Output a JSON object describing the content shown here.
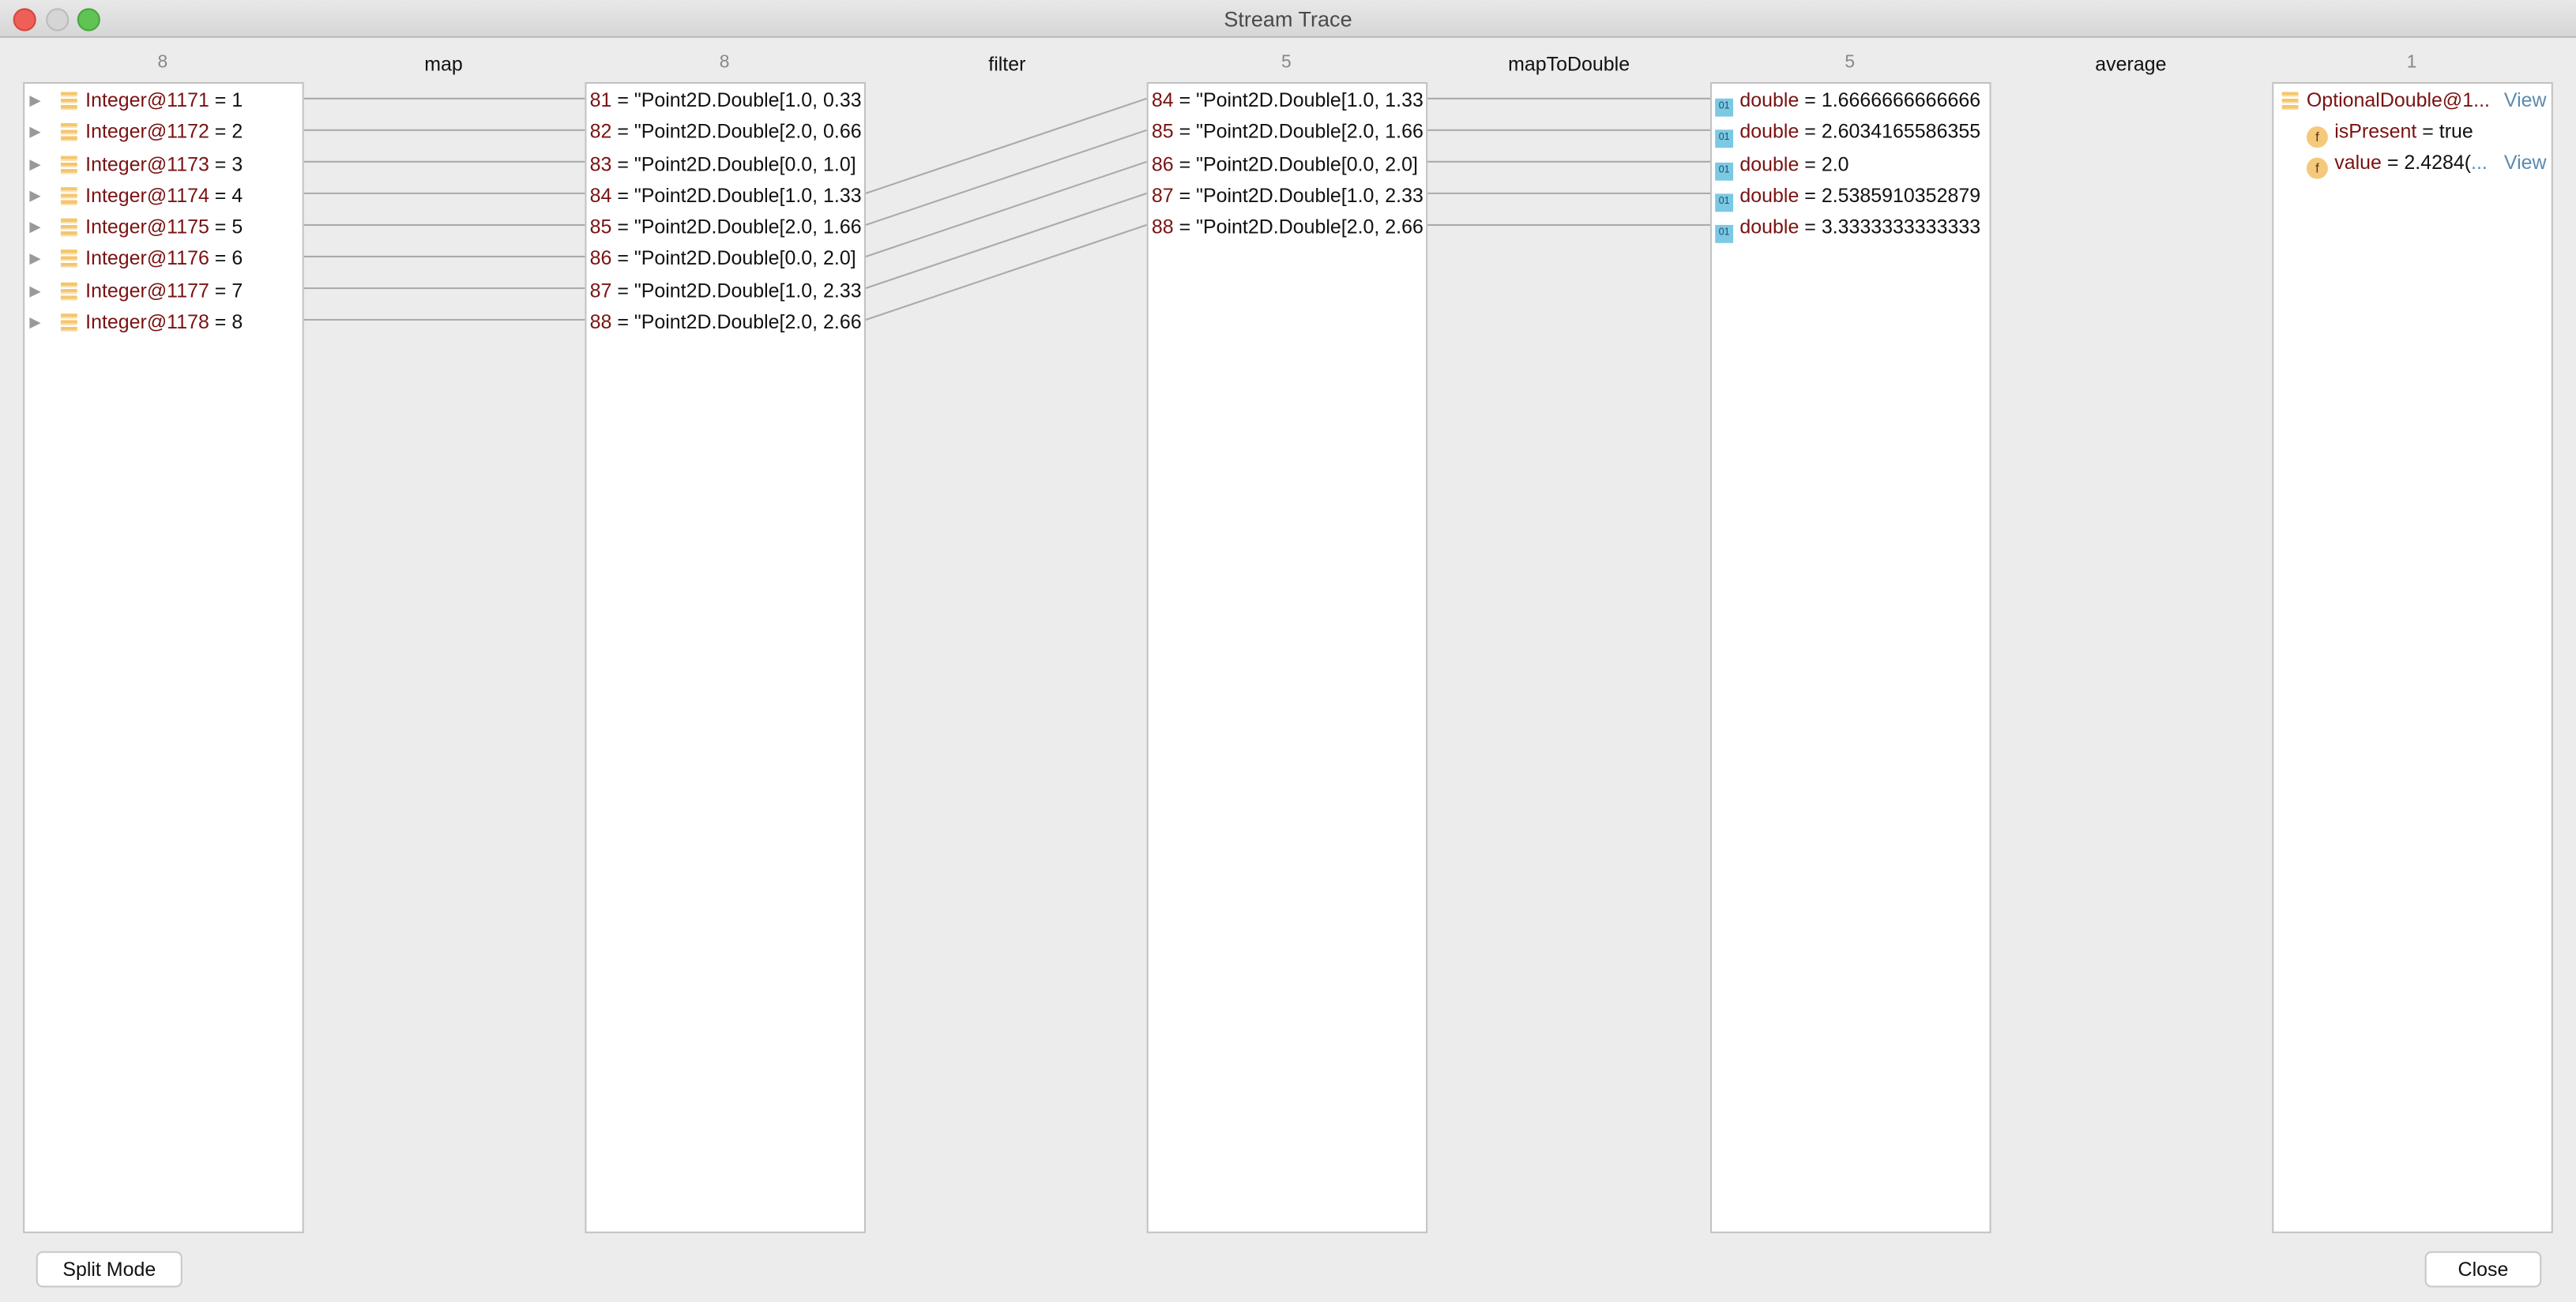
{
  "window": {
    "title": "Stream Trace"
  },
  "stages": [
    {
      "count": "8",
      "items": [
        {
          "key": "Integer@1171",
          "value": "1"
        },
        {
          "key": "Integer@1172",
          "value": "2"
        },
        {
          "key": "Integer@1173",
          "value": "3"
        },
        {
          "key": "Integer@1174",
          "value": "4"
        },
        {
          "key": "Integer@1175",
          "value": "5"
        },
        {
          "key": "Integer@1176",
          "value": "6"
        },
        {
          "key": "Integer@1177",
          "value": "7"
        },
        {
          "key": "Integer@1178",
          "value": "8"
        }
      ]
    },
    {
      "count": "8",
      "items": [
        {
          "key": "81",
          "value": "\"Point2D.Double[1.0, 0.33"
        },
        {
          "key": "82",
          "value": "\"Point2D.Double[2.0, 0.66"
        },
        {
          "key": "83",
          "value": "\"Point2D.Double[0.0, 1.0]"
        },
        {
          "key": "84",
          "value": "\"Point2D.Double[1.0, 1.33"
        },
        {
          "key": "85",
          "value": "\"Point2D.Double[2.0, 1.66"
        },
        {
          "key": "86",
          "value": "\"Point2D.Double[0.0, 2.0]"
        },
        {
          "key": "87",
          "value": "\"Point2D.Double[1.0, 2.33"
        },
        {
          "key": "88",
          "value": "\"Point2D.Double[2.0, 2.66"
        }
      ]
    },
    {
      "count": "5",
      "items": [
        {
          "key": "84",
          "value": "\"Point2D.Double[1.0, 1.33"
        },
        {
          "key": "85",
          "value": "\"Point2D.Double[2.0, 1.66"
        },
        {
          "key": "86",
          "value": "\"Point2D.Double[0.0, 2.0]"
        },
        {
          "key": "87",
          "value": "\"Point2D.Double[1.0, 2.33"
        },
        {
          "key": "88",
          "value": "\"Point2D.Double[2.0, 2.66"
        }
      ]
    },
    {
      "count": "5",
      "items": [
        {
          "key": "double",
          "value": "1.6666666666666"
        },
        {
          "key": "double",
          "value": "2.6034165586355"
        },
        {
          "key": "double",
          "value": "2.0"
        },
        {
          "key": "double",
          "value": "2.5385910352879"
        },
        {
          "key": "double",
          "value": "3.3333333333333"
        }
      ]
    },
    {
      "count": "1",
      "result": {
        "key": "OptionalDouble@1...",
        "view": "View",
        "fields": [
          {
            "key": "isPresent",
            "value": "true"
          },
          {
            "key": "value",
            "value": "2.4284(",
            "more": "...",
            "view": "View"
          }
        ]
      }
    }
  ],
  "operations": [
    "map",
    "filter",
    "mapToDouble",
    "average"
  ],
  "links": [
    [
      [
        0,
        0
      ],
      [
        1,
        1
      ],
      [
        2,
        2
      ],
      [
        3,
        3
      ],
      [
        4,
        4
      ],
      [
        5,
        5
      ],
      [
        6,
        6
      ],
      [
        7,
        7
      ]
    ],
    [
      [
        3,
        0
      ],
      [
        4,
        1
      ],
      [
        5,
        2
      ],
      [
        6,
        3
      ],
      [
        7,
        4
      ]
    ],
    [
      [
        0,
        0
      ],
      [
        1,
        1
      ],
      [
        2,
        2
      ],
      [
        3,
        3
      ],
      [
        4,
        4
      ]
    ]
  ],
  "buttons": {
    "split_mode": "Split Mode",
    "close": "Close"
  },
  "icons": {
    "stage1": "object-stack-icon",
    "stage4": "binary-double-icon",
    "result": "field-icon"
  }
}
